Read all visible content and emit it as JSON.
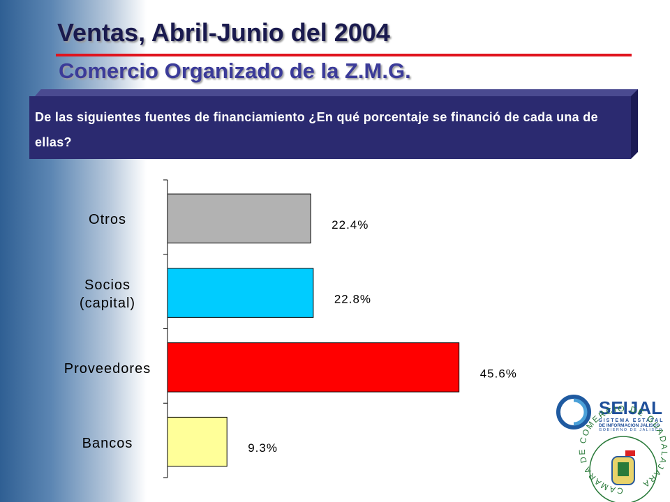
{
  "chart_data": {
    "type": "barh",
    "title": "Ventas, Abril-Junio del 2004",
    "subtitle": "Comercio Organizado de la Z.M.G.",
    "question": "De las siguientes fuentes de financiamiento ¿En qué porcentaje se financió de cada una de ellas?",
    "categories": [
      "Otros",
      "Socios (capital)",
      "Proveedores",
      "Bancos"
    ],
    "values": [
      22.4,
      22.8,
      45.6,
      9.3
    ],
    "value_labels": [
      "22.4%",
      "22.8%",
      "45.6%",
      "9.3%"
    ],
    "colors": [
      "#b2b2b2",
      "#00ccff",
      "#ff0000",
      "#ffff99"
    ],
    "xlim": [
      0,
      50
    ]
  },
  "logos": {
    "seijal": {
      "name": "SEIJAL",
      "line1": "SISTEMA ESTATAL",
      "line2": "DE INFORMACIÓN JALISCO",
      "line3": "GOBIERNO DE JALISCO"
    },
    "camara": "CAMARA DE COMERCIO DE GUADALAJARA"
  }
}
